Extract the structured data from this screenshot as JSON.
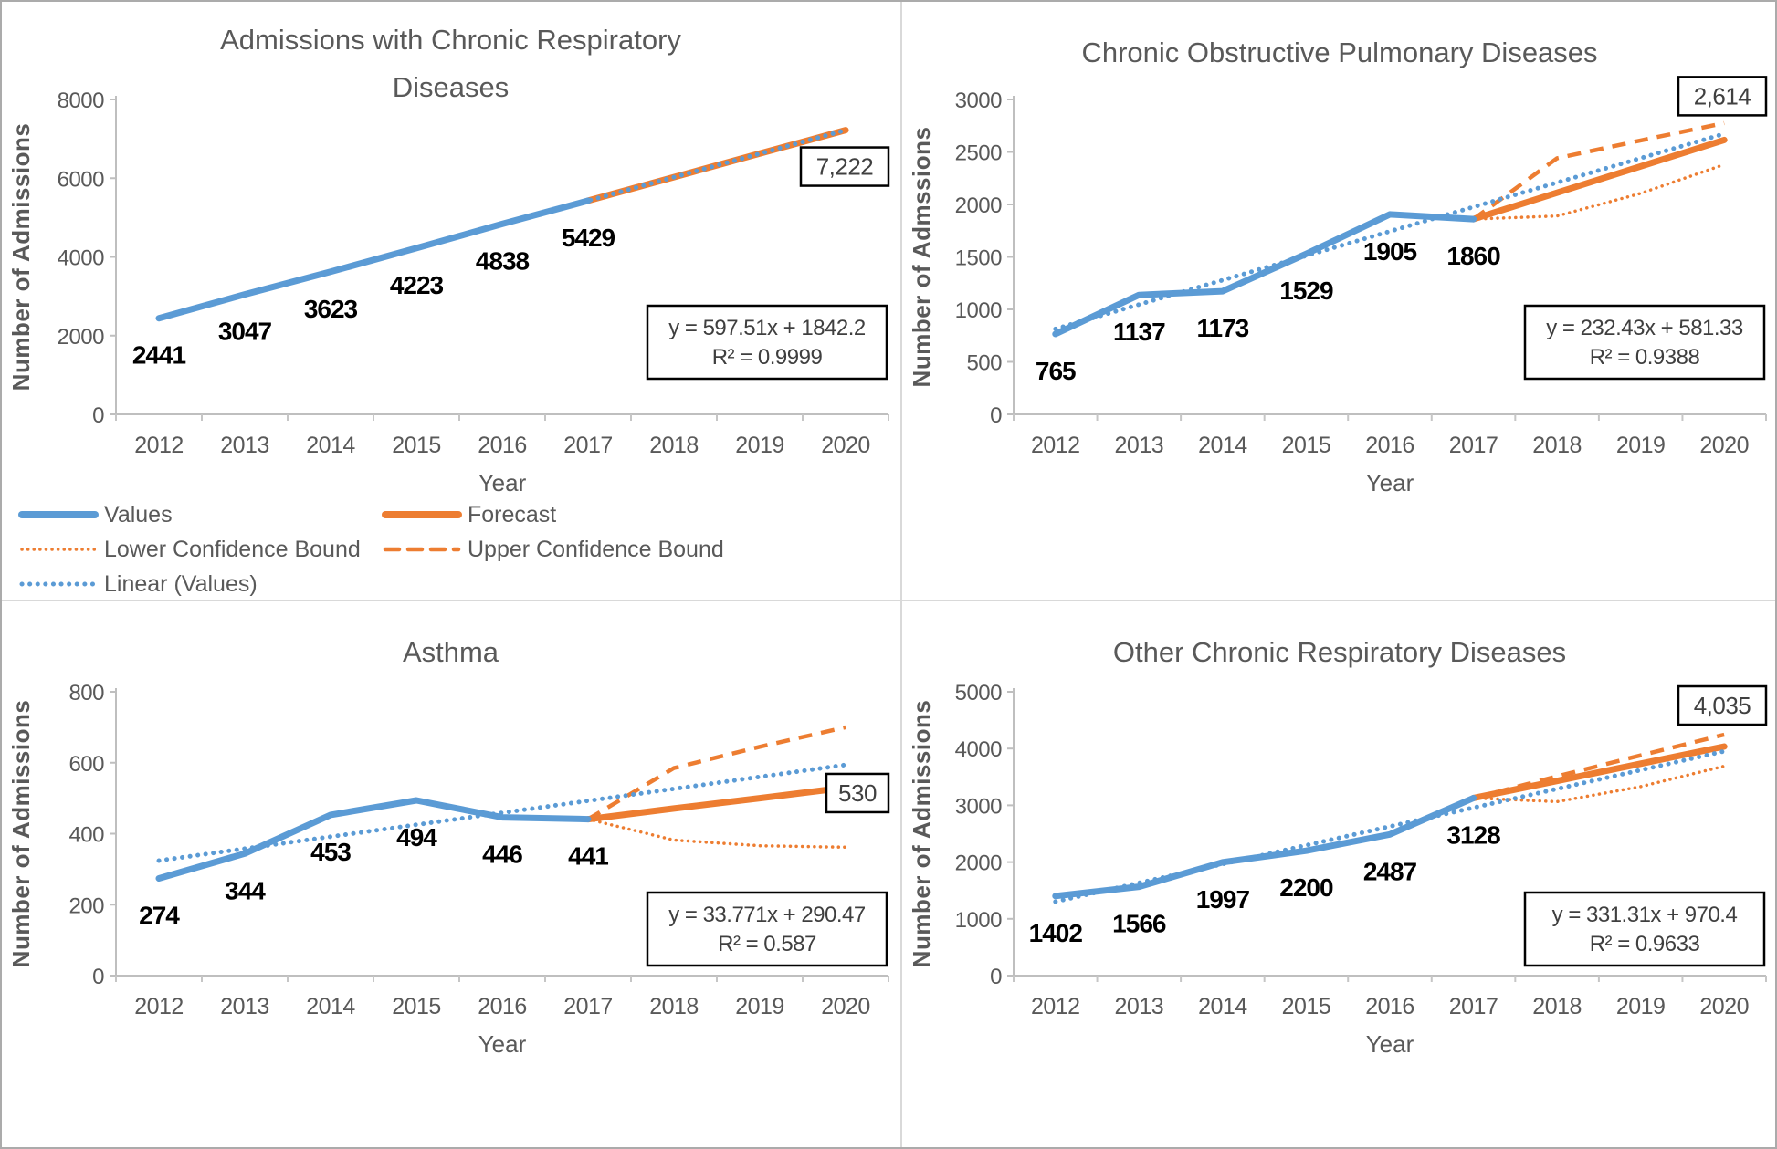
{
  "colors": {
    "values_blue": "#5B9BD5",
    "forecast_orange": "#ED7D31",
    "axis_text_gray": "#595959",
    "data_label_black": "#000000",
    "equation_text": "#3f3f3f",
    "callout_text": "#404040",
    "axis_line_gray": "#BFBFBF",
    "tick_gray": "#C6C6C6",
    "box_border_black": "#000000",
    "divider_gray": "#D9D9D9",
    "background": "#FFFFFF"
  },
  "legend": {
    "items": [
      {
        "label": "Values",
        "color": "#5B9BD5",
        "style": "solid"
      },
      {
        "label": "Forecast",
        "color": "#ED7D31",
        "style": "solid"
      },
      {
        "label": "Lower Confidence Bound",
        "color": "#ED7D31",
        "style": "dotted-small"
      },
      {
        "label": "Upper Confidence Bound",
        "color": "#ED7D31",
        "style": "dashed"
      },
      {
        "label": "Linear (Values)",
        "color": "#5B9BD5",
        "style": "dotted-large"
      }
    ]
  },
  "chart_data": [
    {
      "type": "line",
      "title": "Admissions with Chronic Respiratory Diseases",
      "title_lines": [
        "Admissions with Chronic Respiratory",
        "Diseases"
      ],
      "xlabel": "Year",
      "ylabel": "Number of Admissions",
      "categories": [
        2012,
        2013,
        2014,
        2015,
        2016,
        2017,
        2018,
        2019,
        2020
      ],
      "ylim": [
        0,
        8000
      ],
      "ytick_step": 2000,
      "grid": false,
      "legend_position": "bottom-left",
      "show_legend": true,
      "series": [
        {
          "name": "Values",
          "x": [
            2012,
            2013,
            2014,
            2015,
            2016,
            2017
          ],
          "values": [
            2441,
            3047,
            3623,
            4223,
            4838,
            5429
          ]
        },
        {
          "name": "Forecast",
          "x": [
            2017,
            2018,
            2019,
            2020
          ],
          "values": [
            5429,
            6027,
            6624,
            7222
          ]
        },
        {
          "name": "Lower Confidence Bound",
          "x": [
            2017,
            2018,
            2019,
            2020
          ],
          "values": [
            5429,
            6020,
            6615,
            7210
          ]
        },
        {
          "name": "Upper Confidence Bound",
          "x": [
            2017,
            2018,
            2019,
            2020
          ],
          "values": [
            5429,
            6035,
            6633,
            7232
          ]
        },
        {
          "name": "Linear (Values)",
          "x": [
            2012,
            2020
          ],
          "values": [
            2440,
            7220
          ]
        }
      ],
      "data_labels": [
        {
          "x": 2012,
          "text": "2441"
        },
        {
          "x": 2013,
          "text": "3047"
        },
        {
          "x": 2014,
          "text": "3623"
        },
        {
          "x": 2015,
          "text": "4223"
        },
        {
          "x": 2016,
          "text": "4838"
        },
        {
          "x": 2017,
          "text": "5429"
        }
      ],
      "forecast_callout": {
        "text": "7,222",
        "dy": 40
      },
      "equation": "y = 597.51x + 1842.2",
      "r_squared": "R² = 0.9999"
    },
    {
      "type": "line",
      "title": "Chronic Obstructive Pulmonary Diseases",
      "xlabel": "Year",
      "ylabel": "Number of Admssions",
      "categories": [
        2012,
        2013,
        2014,
        2015,
        2016,
        2017,
        2018,
        2019,
        2020
      ],
      "ylim": [
        0,
        3000
      ],
      "ytick_step": 500,
      "grid": false,
      "show_legend": false,
      "series": [
        {
          "name": "Values",
          "x": [
            2012,
            2013,
            2014,
            2015,
            2016,
            2017
          ],
          "values": [
            765,
            1137,
            1173,
            1529,
            1905,
            1860
          ]
        },
        {
          "name": "Forecast",
          "x": [
            2017,
            2018,
            2019,
            2020
          ],
          "values": [
            1860,
            2111,
            2363,
            2614
          ]
        },
        {
          "name": "Lower Confidence Bound",
          "x": [
            2017,
            2018,
            2019,
            2020
          ],
          "values": [
            1860,
            1890,
            2105,
            2380
          ]
        },
        {
          "name": "Upper Confidence Bound",
          "x": [
            2017,
            2018,
            2019,
            2020
          ],
          "values": [
            1860,
            2440,
            2610,
            2775
          ]
        },
        {
          "name": "Linear (Values)",
          "x": [
            2012,
            2020
          ],
          "values": [
            814,
            2673
          ]
        }
      ],
      "data_labels": [
        {
          "x": 2012,
          "text": "765"
        },
        {
          "x": 2013,
          "text": "1137"
        },
        {
          "x": 2014,
          "text": "1173"
        },
        {
          "x": 2015,
          "text": "1529"
        },
        {
          "x": 2016,
          "text": "1905"
        },
        {
          "x": 2017,
          "text": "1860"
        }
      ],
      "forecast_callout": {
        "text": "2,614",
        "dy": -48
      },
      "equation": "y = 232.43x + 581.33",
      "r_squared": "R² = 0.9388"
    },
    {
      "type": "line",
      "title": "Asthma",
      "xlabel": "Year",
      "ylabel": "Number of Admissions",
      "categories": [
        2012,
        2013,
        2014,
        2015,
        2016,
        2017,
        2018,
        2019,
        2020
      ],
      "ylim": [
        0,
        800
      ],
      "ytick_step": 200,
      "grid": false,
      "show_legend": false,
      "series": [
        {
          "name": "Values",
          "x": [
            2012,
            2013,
            2014,
            2015,
            2016,
            2017
          ],
          "values": [
            274,
            344,
            453,
            494,
            446,
            441
          ]
        },
        {
          "name": "Forecast",
          "x": [
            2017,
            2018,
            2019,
            2020
          ],
          "values": [
            441,
            471,
            500,
            530
          ]
        },
        {
          "name": "Lower Confidence Bound",
          "x": [
            2017,
            2018,
            2019,
            2020
          ],
          "values": [
            441,
            382,
            366,
            362
          ]
        },
        {
          "name": "Upper Confidence Bound",
          "x": [
            2017,
            2018,
            2019,
            2020
          ],
          "values": [
            441,
            585,
            645,
            700
          ]
        },
        {
          "name": "Linear (Values)",
          "x": [
            2012,
            2020
          ],
          "values": [
            324,
            594
          ]
        }
      ],
      "data_labels": [
        {
          "x": 2012,
          "text": "274"
        },
        {
          "x": 2013,
          "text": "344"
        },
        {
          "x": 2014,
          "text": "453"
        },
        {
          "x": 2015,
          "text": "494"
        },
        {
          "x": 2016,
          "text": "446"
        },
        {
          "x": 2017,
          "text": "441"
        }
      ],
      "forecast_callout": {
        "text": "530",
        "dy": 6
      },
      "equation": "y = 33.771x + 290.47",
      "r_squared": "R² = 0.587"
    },
    {
      "type": "line",
      "title": "Other Chronic Respiratory Diseases",
      "xlabel": "Year",
      "ylabel": "Number of Admissions",
      "categories": [
        2012,
        2013,
        2014,
        2015,
        2016,
        2017,
        2018,
        2019,
        2020
      ],
      "ylim": [
        0,
        5000
      ],
      "ytick_step": 1000,
      "grid": false,
      "show_legend": false,
      "series": [
        {
          "name": "Values",
          "x": [
            2012,
            2013,
            2014,
            2015,
            2016,
            2017
          ],
          "values": [
            1402,
            1566,
            1997,
            2200,
            2487,
            3128
          ]
        },
        {
          "name": "Forecast",
          "x": [
            2017,
            2018,
            2019,
            2020
          ],
          "values": [
            3128,
            3430,
            3733,
            4035
          ]
        },
        {
          "name": "Lower Confidence Bound",
          "x": [
            2017,
            2018,
            2019,
            2020
          ],
          "values": [
            3128,
            3065,
            3330,
            3690
          ]
        },
        {
          "name": "Upper Confidence Bound",
          "x": [
            2017,
            2018,
            2019,
            2020
          ],
          "values": [
            3128,
            3510,
            3880,
            4245
          ]
        },
        {
          "name": "Linear (Values)",
          "x": [
            2012,
            2020
          ],
          "values": [
            1302,
            3952
          ]
        }
      ],
      "data_labels": [
        {
          "x": 2012,
          "text": "1402"
        },
        {
          "x": 2013,
          "text": "1566"
        },
        {
          "x": 2014,
          "text": "1997"
        },
        {
          "x": 2015,
          "text": "2200"
        },
        {
          "x": 2016,
          "text": "2487"
        },
        {
          "x": 2017,
          "text": "3128"
        }
      ],
      "forecast_callout": {
        "text": "4,035",
        "dy": -45
      },
      "equation": "y = 331.31x + 970.4",
      "r_squared": "R² = 0.9633"
    }
  ]
}
